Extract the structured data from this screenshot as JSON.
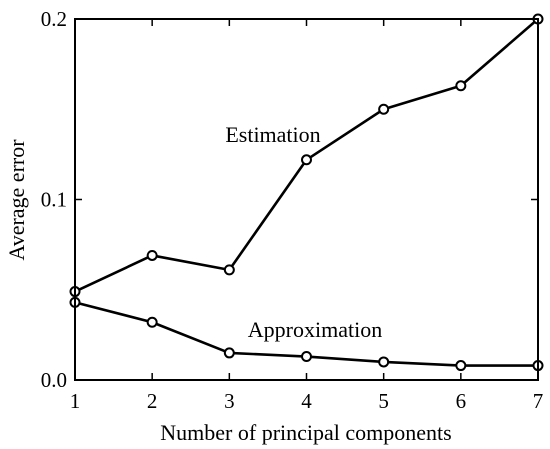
{
  "chart_data": {
    "type": "line",
    "xlabel": "Number of principal components",
    "ylabel": "Average error",
    "x": [
      1,
      2,
      3,
      4,
      5,
      6,
      7
    ],
    "xlim": [
      1,
      7
    ],
    "ylim": [
      0,
      0.2
    ],
    "xticks": [
      "1",
      "2",
      "3",
      "4",
      "5",
      "6",
      "7"
    ],
    "yticks": [
      {
        "value": 0.0,
        "label": "0.0"
      },
      {
        "value": 0.1,
        "label": "0.1"
      },
      {
        "value": 0.2,
        "label": "0.2"
      }
    ],
    "grid": false,
    "legend": "none",
    "marker": "circle",
    "color": "#000000",
    "series": [
      {
        "name": "Estimation",
        "values": [
          0.049,
          0.069,
          0.061,
          0.122,
          0.15,
          0.163,
          0.2
        ]
      },
      {
        "name": "Approximation",
        "values": [
          0.043,
          0.032,
          0.015,
          0.013,
          0.01,
          0.008,
          0.008
        ]
      }
    ]
  }
}
